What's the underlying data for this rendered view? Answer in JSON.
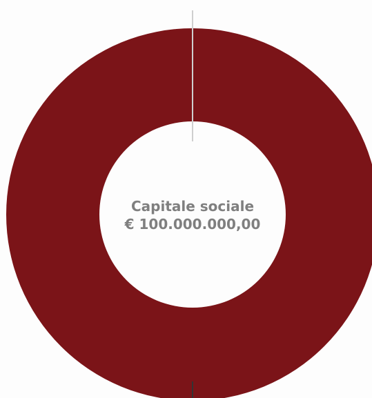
{
  "chart_data": {
    "type": "pie",
    "variant": "donut",
    "slices": [
      {
        "label": "",
        "value": 100,
        "color": "#7b1418"
      }
    ],
    "center_label": {
      "title": "Capitale sociale",
      "value": "€ 100.000.000,00"
    },
    "colors": {
      "slice": "#7b1418",
      "separator_light": "#cfcfcf",
      "separator_dark": "#333333",
      "text": "#7f7f7f"
    }
  }
}
